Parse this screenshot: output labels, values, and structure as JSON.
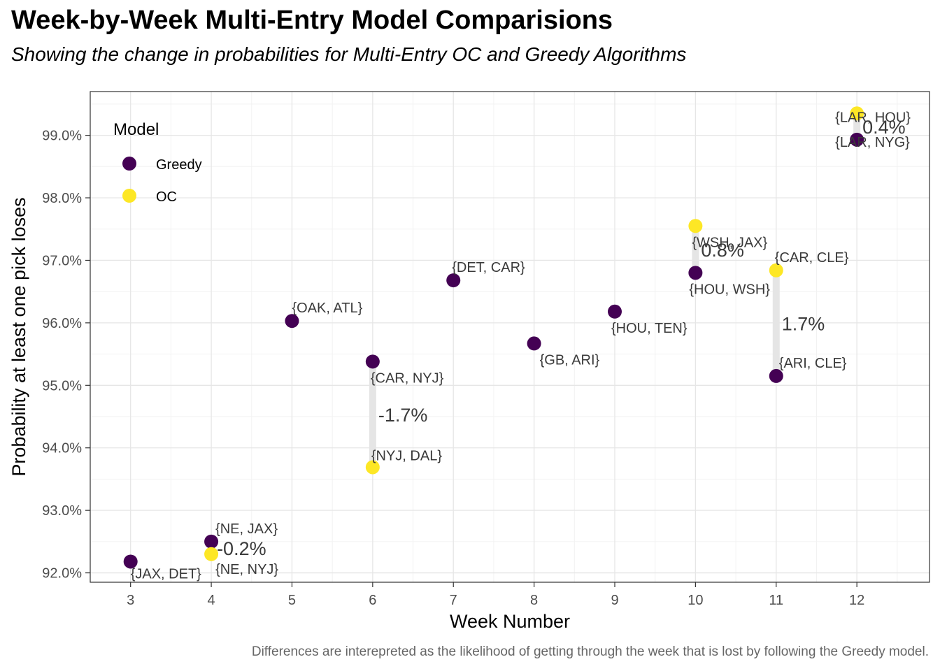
{
  "title": "Week-by-Week Multi-Entry Model Comparisions",
  "subtitle": "Showing the change in probabilities for Multi-Entry OC and Greedy Algorithms",
  "caption": "Differences are interepreted as the likelihood of getting through the week that is lost by following the Greedy model.",
  "chart_data": {
    "type": "scatter",
    "xlabel": "Week Number",
    "ylabel": "Probability at least one pick loses",
    "xlim": [
      2.5,
      12.9
    ],
    "ylim": [
      91.85,
      99.7
    ],
    "x_ticks": [
      3,
      4,
      5,
      6,
      7,
      8,
      9,
      10,
      11,
      12
    ],
    "x_tick_labels": [
      "3",
      "4",
      "5",
      "6",
      "7",
      "8",
      "9",
      "10",
      "11",
      "12"
    ],
    "y_ticks": [
      92,
      93,
      94,
      95,
      96,
      97,
      98,
      99
    ],
    "y_tick_labels": [
      "92.0%",
      "93.0%",
      "94.0%",
      "95.0%",
      "96.0%",
      "97.0%",
      "98.0%",
      "99.0%"
    ],
    "grid": true,
    "legend": {
      "title": "Model",
      "placement": "top-left",
      "items": [
        {
          "name": "Greedy",
          "color": "#440154"
        },
        {
          "name": "OC",
          "color": "#FDE725"
        }
      ]
    },
    "series": [
      {
        "name": "Greedy",
        "color": "#440154",
        "points": [
          {
            "x": 3,
            "y": 92.18,
            "label": "{JAX, DET}"
          },
          {
            "x": 4,
            "y": 92.5,
            "label": "{NE, JAX}"
          },
          {
            "x": 5,
            "y": 96.03,
            "label": "{OAK, ATL}"
          },
          {
            "x": 6,
            "y": 95.38,
            "label": "{CAR, NYJ}"
          },
          {
            "x": 7,
            "y": 96.68,
            "label": "{DET, CAR}"
          },
          {
            "x": 8,
            "y": 95.67,
            "label": "{GB, ARI}"
          },
          {
            "x": 9,
            "y": 96.18,
            "label": "{HOU, TEN}"
          },
          {
            "x": 10,
            "y": 96.8,
            "label": "{HOU, WSH}"
          },
          {
            "x": 11,
            "y": 95.15,
            "label": "{ARI, CLE}"
          },
          {
            "x": 12,
            "y": 98.93,
            "label": "{LAR, NYG}"
          }
        ]
      },
      {
        "name": "OC",
        "color": "#FDE725",
        "points": [
          {
            "x": 4,
            "y": 92.3,
            "label": "{NE, NYJ}"
          },
          {
            "x": 6,
            "y": 93.69,
            "label": "{NYJ, DAL}"
          },
          {
            "x": 10,
            "y": 97.55,
            "label": "{WSH, JAX}"
          },
          {
            "x": 11,
            "y": 96.84,
            "label": "{CAR, CLE}"
          },
          {
            "x": 12,
            "y": 99.35,
            "label": "{LAR, HOU}"
          }
        ]
      }
    ],
    "differences": [
      {
        "x": 4,
        "y_from": 92.3,
        "y_to": 92.5,
        "label": "-0.2%"
      },
      {
        "x": 6,
        "y_from": 93.69,
        "y_to": 95.38,
        "label": "-1.7%"
      },
      {
        "x": 10,
        "y_from": 96.8,
        "y_to": 97.55,
        "label": "0.8%"
      },
      {
        "x": 11,
        "y_from": 95.15,
        "y_to": 96.84,
        "label": "1.7%"
      },
      {
        "x": 12,
        "y_from": 98.93,
        "y_to": 99.35,
        "label": "0.4%"
      }
    ]
  }
}
